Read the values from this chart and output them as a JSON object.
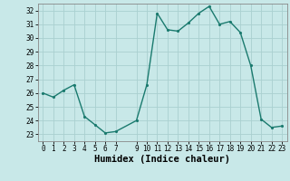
{
  "x": [
    0,
    1,
    2,
    3,
    4,
    5,
    6,
    7,
    9,
    10,
    11,
    12,
    13,
    14,
    15,
    16,
    17,
    18,
    19,
    20,
    21,
    22,
    23
  ],
  "y": [
    26.0,
    25.7,
    26.2,
    26.6,
    24.3,
    23.7,
    23.1,
    23.2,
    24.0,
    26.6,
    31.8,
    30.6,
    30.5,
    31.1,
    31.8,
    32.3,
    31.0,
    31.2,
    30.4,
    28.0,
    24.1,
    23.5,
    23.6
  ],
  "line_color": "#1a7a6e",
  "marker_color": "#1a7a6e",
  "bg_color": "#c8e8e8",
  "grid_color": "#aad0d0",
  "xlabel": "Humidex (Indice chaleur)",
  "ylim": [
    22.5,
    32.5
  ],
  "xlim": [
    -0.5,
    23.5
  ],
  "yticks": [
    23,
    24,
    25,
    26,
    27,
    28,
    29,
    30,
    31,
    32
  ],
  "xticks": [
    0,
    1,
    2,
    3,
    4,
    5,
    6,
    7,
    9,
    10,
    11,
    12,
    13,
    14,
    15,
    16,
    17,
    18,
    19,
    20,
    21,
    22,
    23
  ],
  "tick_label_fontsize": 5.5,
  "xlabel_fontsize": 7.5,
  "marker_size": 2.5,
  "line_width": 1.0
}
